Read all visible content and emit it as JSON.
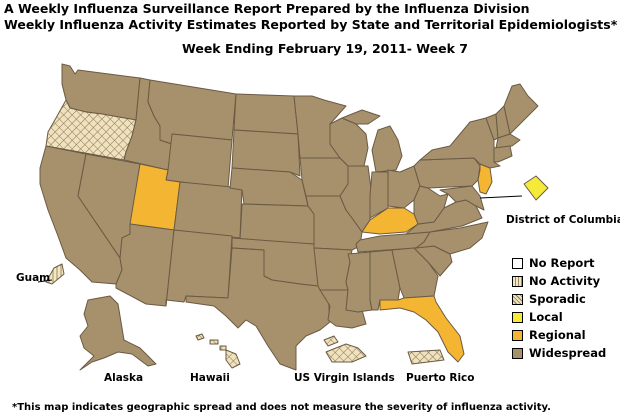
{
  "header": {
    "title_line1": "A Weekly Influenza Surveillance Report Prepared by the Influenza Division",
    "title_line2": "Weekly Influenza Activity Estimates Reported by State and Territorial Epidemiologists*",
    "week": "Week Ending February 19, 2011- Week 7"
  },
  "colors": {
    "no_report": "#ffffff",
    "no_activity": "#f3e8c4",
    "sporadic": "#efe2bd",
    "local": "#f5ea3a",
    "regional": "#f4b632",
    "widespread": "#a6916c",
    "border": "#6b5a44"
  },
  "legend": {
    "items": [
      {
        "label": "No Report",
        "level": "no_report"
      },
      {
        "label": "No Activity",
        "level": "no_activity"
      },
      {
        "label": "Sporadic",
        "level": "sporadic"
      },
      {
        "label": "Local",
        "level": "local"
      },
      {
        "label": "Regional",
        "level": "regional"
      },
      {
        "label": "Widespread",
        "level": "widespread"
      }
    ]
  },
  "labels": {
    "dc": "District of Columbia",
    "guam": "Guam",
    "alaska": "Alaska",
    "hawaii": "Hawaii",
    "usvi": "US Virgin Islands",
    "pr": "Puerto Rico"
  },
  "regions": {
    "oregon": "sporadic",
    "utah": "regional",
    "kentucky": "regional",
    "florida": "regional",
    "new_jersey": "regional",
    "dc": "local",
    "guam": "no_activity",
    "hawaii": "sporadic",
    "usvi": "sporadic",
    "puerto_rico": "sporadic",
    "alaska": "widespread",
    "others": "widespread"
  },
  "footnote": "*This map indicates geographic spread and does not measure the severity of influenza activity."
}
